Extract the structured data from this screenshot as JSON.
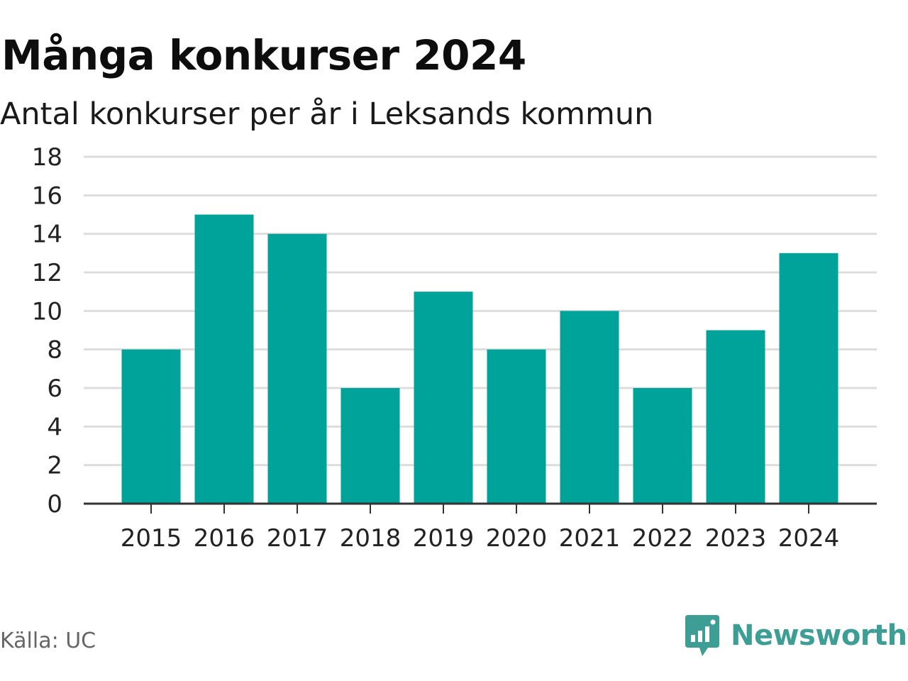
{
  "header": {
    "title": "Många konkurser 2024",
    "subtitle": "Antal konkurser per år i Leksands kommun"
  },
  "footer": {
    "source": "Källa: UC",
    "brand": "Newsworthy",
    "brand_icon": "newsworthy-logo-icon"
  },
  "colors": {
    "bar": "#00A39A",
    "grid": "#DDDDDD",
    "axis": "#333333",
    "brand": "#3D9E96"
  },
  "chart_data": {
    "type": "bar",
    "title": "Många konkurser 2024",
    "subtitle": "Antal konkurser per år i Leksands kommun",
    "categories": [
      "2015",
      "2016",
      "2017",
      "2018",
      "2019",
      "2020",
      "2021",
      "2022",
      "2023",
      "2024"
    ],
    "values": [
      8,
      15,
      14,
      6,
      11,
      8,
      10,
      6,
      9,
      13
    ],
    "xlabel": "",
    "ylabel": "",
    "ylim": [
      0,
      18
    ],
    "yticks": [
      0,
      2,
      4,
      6,
      8,
      10,
      12,
      14,
      16,
      18
    ],
    "grid": true,
    "legend": "none"
  }
}
